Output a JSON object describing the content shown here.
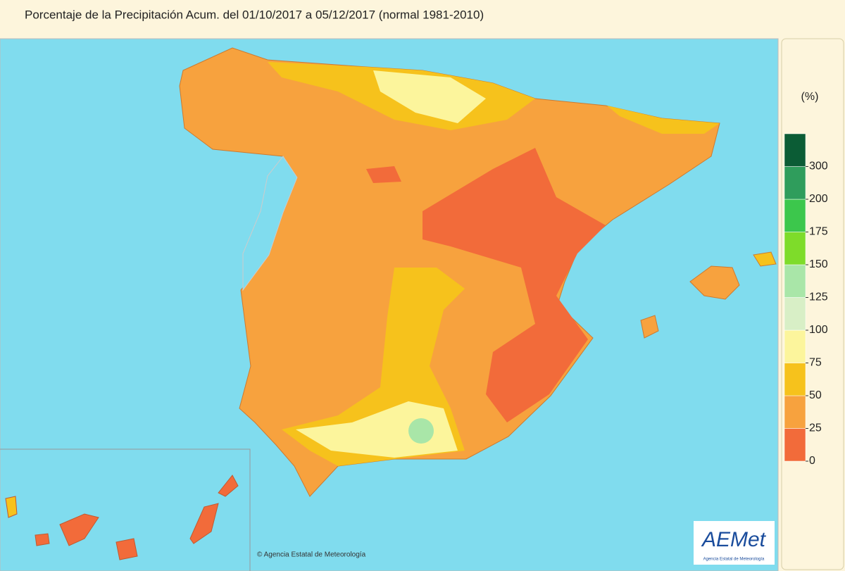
{
  "header": {
    "title": "Porcentaje de la Precipitación Acum. del 01/10/2017 a 05/12/2017 (normal 1981-2010)"
  },
  "legend": {
    "unit": "(%)",
    "ticks": [
      0,
      25,
      50,
      75,
      100,
      125,
      150,
      175,
      200,
      300
    ],
    "colors": [
      "#f26b3a",
      "#f7a23e",
      "#f6c21c",
      "#fcf59c",
      "#d8efc6",
      "#a9e6a8",
      "#7edc2a",
      "#3cc74c",
      "#2f9d5c",
      "#0b5c35"
    ]
  },
  "credit": "© Agencia Estatal de Meteorología",
  "logo": {
    "name": "AEMet",
    "subtitle": "Agencia Estatal de Meteorología"
  }
}
